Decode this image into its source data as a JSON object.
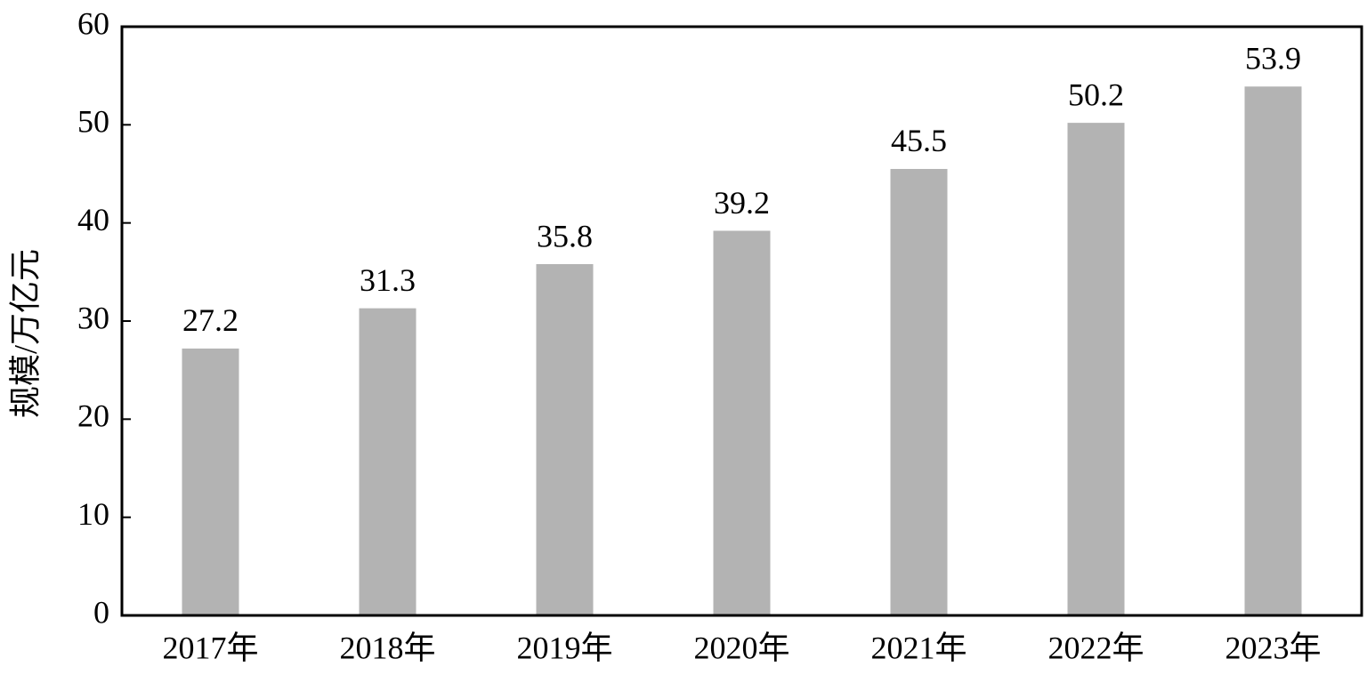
{
  "chart_data": {
    "type": "bar",
    "y_label": "规模/万亿元",
    "categories": [
      "2017年",
      "2018年",
      "2019年",
      "2020年",
      "2021年",
      "2022年",
      "2023年"
    ],
    "values": [
      27.2,
      31.3,
      35.8,
      39.2,
      45.5,
      50.2,
      53.9
    ],
    "color": "#b3b3b3",
    "ylim": [
      0,
      60
    ],
    "yticks": [
      0,
      10,
      20,
      30,
      40,
      50,
      60
    ],
    "grid": false
  }
}
